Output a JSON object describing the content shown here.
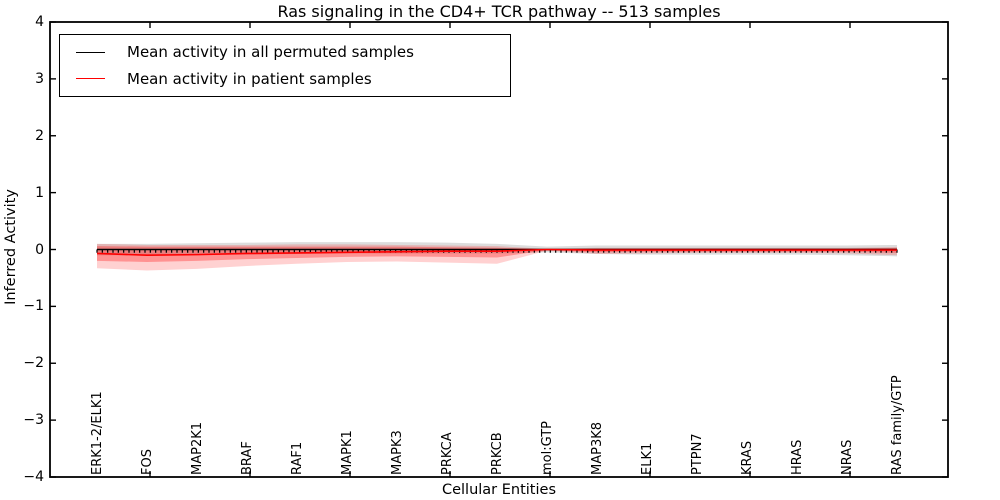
{
  "chart_data": {
    "type": "line",
    "title": "Ras signaling in the CD4+ TCR pathway -- 513 samples",
    "xlabel": "Cellular Entities",
    "ylabel": "Inferred Activity",
    "ylim": [
      -4,
      4
    ],
    "ytick_labels": [
      "4",
      "3",
      "2",
      "1",
      "0",
      "−1",
      "−2",
      "−3",
      "−4"
    ],
    "grid": false,
    "legend_position": "upper left",
    "categories": [
      "ERK1-2/ELK1",
      "FOS",
      "MAP2K1",
      "BRAF",
      "RAF1",
      "MAPK1",
      "MAPK3",
      "PRKCA",
      "PRKCB",
      "mol:GTP",
      "MAP3K8",
      "ELK1",
      "PTPN7",
      "KRAS",
      "HRAS",
      "NRAS",
      "RAS family/GTP"
    ],
    "legend": [
      {
        "label": "Mean activity in all permuted samples",
        "color": "#000000"
      },
      {
        "label": "Mean activity in patient samples",
        "color": "#ff0000"
      }
    ],
    "series": [
      {
        "name": "Mean activity in all permuted samples",
        "color": "#000000",
        "marker": "tick-down",
        "marker_count": 151,
        "values": [
          0,
          0,
          0,
          0,
          0,
          0,
          0,
          0,
          0,
          0,
          0,
          0,
          0,
          0,
          0,
          0,
          0
        ]
      },
      {
        "name": "Mean activity in patient samples",
        "color": "#ff0000",
        "values": [
          -0.07,
          -0.1,
          -0.09,
          -0.07,
          -0.06,
          -0.05,
          -0.04,
          -0.03,
          -0.03,
          0.0,
          -0.01,
          -0.01,
          -0.01,
          -0.01,
          -0.01,
          -0.01,
          -0.01
        ]
      }
    ],
    "bands": [
      {
        "name": "permuted-samples-range",
        "color": "#bfbfbf",
        "opacity": 0.55,
        "upper": [
          0.1,
          0.1,
          0.11,
          0.12,
          0.13,
          0.13,
          0.13,
          0.12,
          0.1,
          0.05,
          0.07,
          0.07,
          0.07,
          0.07,
          0.07,
          0.07,
          0.08
        ],
        "lower": [
          -0.1,
          -0.1,
          -0.09,
          -0.09,
          -0.08,
          -0.07,
          -0.07,
          -0.07,
          -0.07,
          -0.05,
          -0.08,
          -0.09,
          -0.09,
          -0.09,
          -0.09,
          -0.1,
          -0.12
        ]
      },
      {
        "name": "patient-samples-outer",
        "color": "#ff0000",
        "opacity": 0.18,
        "upper": [
          0.1,
          0.08,
          0.08,
          0.08,
          0.09,
          0.09,
          0.08,
          0.07,
          0.06,
          0.01,
          0.03,
          0.03,
          0.03,
          0.03,
          0.03,
          0.03,
          0.04
        ],
        "lower": [
          -0.33,
          -0.37,
          -0.34,
          -0.29,
          -0.25,
          -0.22,
          -0.21,
          -0.23,
          -0.25,
          -0.02,
          -0.08,
          -0.07,
          -0.06,
          -0.06,
          -0.06,
          -0.07,
          -0.1
        ]
      },
      {
        "name": "patient-samples-inner",
        "color": "#ff0000",
        "opacity": 0.3,
        "upper": [
          0.06,
          0.05,
          0.05,
          0.05,
          0.05,
          0.05,
          0.05,
          0.04,
          0.03,
          0.01,
          0.02,
          0.02,
          0.02,
          0.02,
          0.02,
          0.02,
          0.03
        ],
        "lower": [
          -0.2,
          -0.22,
          -0.2,
          -0.17,
          -0.15,
          -0.13,
          -0.12,
          -0.13,
          -0.14,
          -0.01,
          -0.05,
          -0.04,
          -0.04,
          -0.04,
          -0.04,
          -0.04,
          -0.06
        ]
      }
    ]
  }
}
